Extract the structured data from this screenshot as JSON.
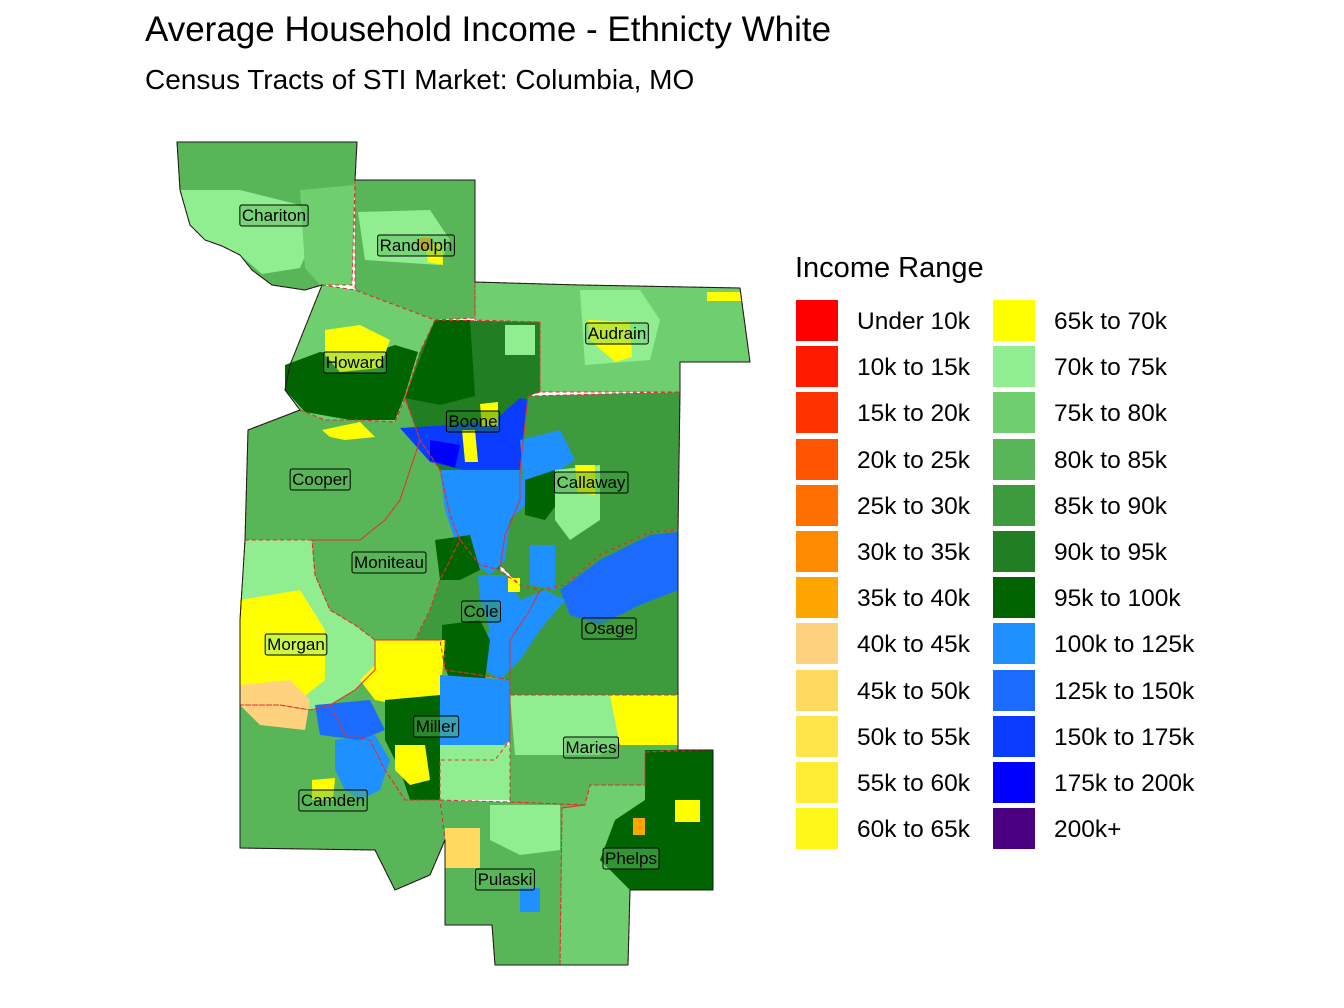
{
  "title": "Average Household Income - Ethnicty White",
  "subtitle": "Census Tracts of STI Market: Columbia, MO",
  "legend": {
    "title": "Income Range",
    "items": [
      {
        "label": "Under 10k",
        "color": "#FF0000"
      },
      {
        "label": "10k to 15k",
        "color": "#FF1A00"
      },
      {
        "label": "15k to 20k",
        "color": "#FF3300"
      },
      {
        "label": "20k to 25k",
        "color": "#FF5500"
      },
      {
        "label": "25k to 30k",
        "color": "#FF7000"
      },
      {
        "label": "30k to 35k",
        "color": "#FF8C00"
      },
      {
        "label": "35k to 40k",
        "color": "#FFA500"
      },
      {
        "label": "40k to 45k",
        "color": "#FFD27F"
      },
      {
        "label": "45k to 50k",
        "color": "#FFDA5E"
      },
      {
        "label": "50k to 55k",
        "color": "#FFE44A"
      },
      {
        "label": "55k to 60k",
        "color": "#FFEC33"
      },
      {
        "label": "60k to 65k",
        "color": "#FFF61A"
      },
      {
        "label": "65k to 70k",
        "color": "#FFFF00"
      },
      {
        "label": "70k to 75k",
        "color": "#90EE90"
      },
      {
        "label": "75k to 80k",
        "color": "#6FCF6F"
      },
      {
        "label": "80k to 85k",
        "color": "#58B658"
      },
      {
        "label": "85k to 90k",
        "color": "#3D9B3D"
      },
      {
        "label": "90k to 95k",
        "color": "#227E22"
      },
      {
        "label": "95k to 100k",
        "color": "#006400"
      },
      {
        "label": "100k to 125k",
        "color": "#1E90FF"
      },
      {
        "label": "125k to 150k",
        "color": "#1C6BFF"
      },
      {
        "label": "150k to 175k",
        "color": "#0A3CFF"
      },
      {
        "label": "175k to 200k",
        "color": "#0000FF"
      },
      {
        "label": "200k+",
        "color": "#4B0082"
      }
    ]
  },
  "counties": [
    {
      "name": "Chariton",
      "fill": "#58B658"
    },
    {
      "name": "Randolph",
      "fill": "#58B658"
    },
    {
      "name": "Audrain",
      "fill": "#6FCF6F"
    },
    {
      "name": "Howard",
      "fill": "#6FCF6F"
    },
    {
      "name": "Boone",
      "fill": "#227E22"
    },
    {
      "name": "Callaway",
      "fill": "#3D9B3D"
    },
    {
      "name": "Cooper",
      "fill": "#58B658"
    },
    {
      "name": "Moniteau",
      "fill": "#58B658"
    },
    {
      "name": "Cole",
      "fill": "#3D9B3D"
    },
    {
      "name": "Osage",
      "fill": "#3D9B3D"
    },
    {
      "name": "Morgan",
      "fill": "#90EE90"
    },
    {
      "name": "Miller",
      "fill": "#58B658"
    },
    {
      "name": "Maries",
      "fill": "#58B658"
    },
    {
      "name": "Camden",
      "fill": "#58B658"
    },
    {
      "name": "Pulaski",
      "fill": "#58B658"
    },
    {
      "name": "Phelps",
      "fill": "#6FCF6F"
    }
  ]
}
